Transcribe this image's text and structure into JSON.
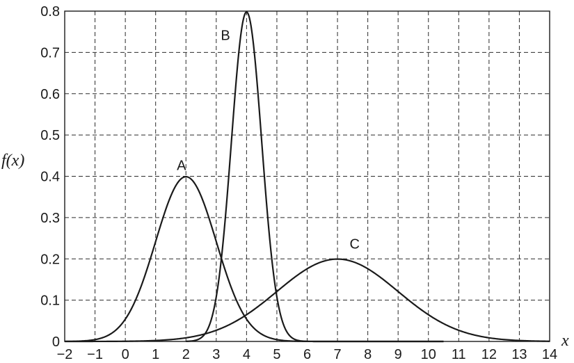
{
  "chart_data": {
    "type": "line",
    "xlabel": "x",
    "ylabel": "f(x)",
    "xlim": [
      -2,
      14
    ],
    "ylim": [
      0,
      0.8
    ],
    "x_ticks": [
      "−2",
      "−1",
      "0",
      "1",
      "2",
      "3",
      "4",
      "5",
      "6",
      "7",
      "8",
      "9",
      "10",
      "11",
      "12",
      "13",
      "14"
    ],
    "y_ticks": [
      "0",
      "0.1",
      "0.2",
      "0.3",
      "0.4",
      "0.5",
      "0.6",
      "0.7",
      "0.8"
    ],
    "grid": true,
    "series": [
      {
        "name": "A",
        "distribution": "normal",
        "mean": 2,
        "sd": 1,
        "x_range": [
          -2,
          10.5
        ],
        "peak": [
          2,
          0.399
        ]
      },
      {
        "name": "B",
        "distribution": "normal",
        "mean": 4,
        "sd": 0.5,
        "x_range": [
          2,
          10.5
        ],
        "peak": [
          4,
          0.798
        ]
      },
      {
        "name": "C",
        "distribution": "normal",
        "mean": 7,
        "sd": 2,
        "x_range": [
          -2,
          14
        ],
        "peak": [
          7,
          0.199
        ]
      }
    ],
    "curve_labels": [
      {
        "text": "A",
        "x": 1.7,
        "y": 0.415
      },
      {
        "text": "B",
        "x": 3.15,
        "y": 0.73
      },
      {
        "text": "C",
        "x": 7.4,
        "y": 0.225
      }
    ]
  }
}
